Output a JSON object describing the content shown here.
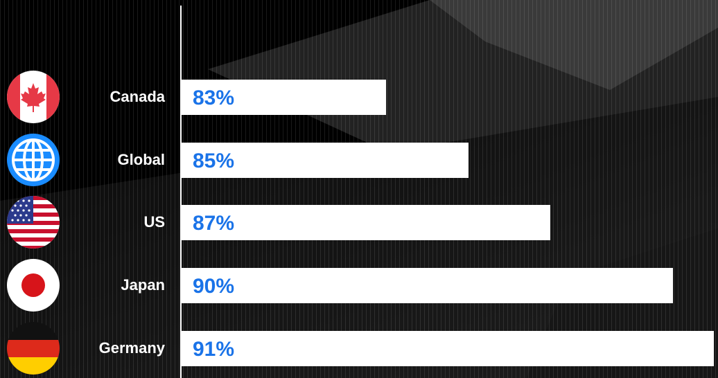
{
  "chart_data": {
    "type": "bar",
    "orientation": "horizontal",
    "categories": [
      "Canada",
      "Global",
      "US",
      "Japan",
      "Germany"
    ],
    "values": [
      83,
      85,
      87,
      90,
      91
    ],
    "value_labels": [
      "83%",
      "85%",
      "87%",
      "90%",
      "91%"
    ],
    "icons": [
      "canada-flag-icon",
      "globe-icon",
      "us-flag-icon",
      "japan-flag-icon",
      "germany-flag-icon"
    ],
    "xlim": [
      78.0,
      91.1
    ],
    "title": "",
    "xlabel": "",
    "ylabel": "",
    "grid": false,
    "colors": {
      "bar": "#ffffff",
      "value_text": "#1a73e8",
      "label_text": "#ffffff",
      "background": "#000000"
    }
  }
}
